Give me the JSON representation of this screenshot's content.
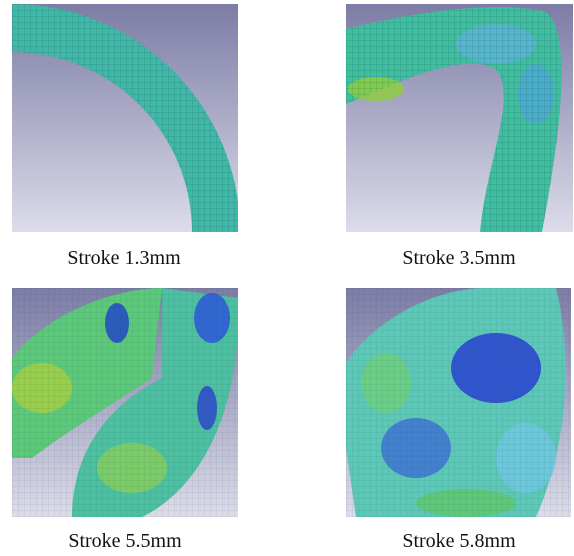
{
  "panels": [
    {
      "caption": "Stroke 1.3mm"
    },
    {
      "caption": "Stroke 3.5mm"
    },
    {
      "caption": "Stroke 5.5mm"
    },
    {
      "caption": "Stroke 5.8mm"
    }
  ]
}
